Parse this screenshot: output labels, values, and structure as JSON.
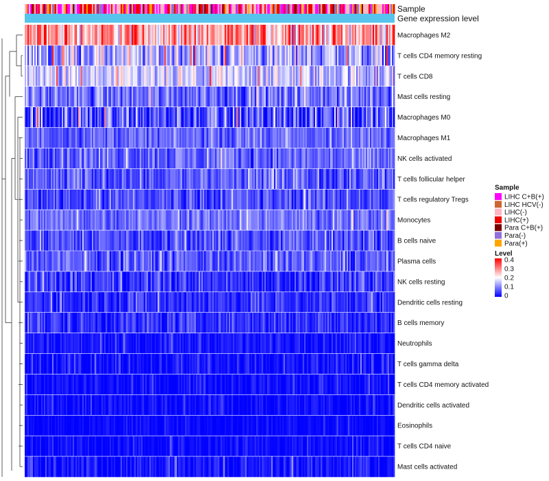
{
  "chart_data": {
    "type": "heatmap",
    "title": "",
    "annotation_rows": [
      "Sample",
      "Gene expression level"
    ],
    "rows": [
      {
        "name": "Macrophages M2",
        "mean": 0.27,
        "spread": 0.12
      },
      {
        "name": "T cells CD4 memory resting",
        "mean": 0.13,
        "spread": 0.1
      },
      {
        "name": "T cells CD8",
        "mean": 0.15,
        "spread": 0.08
      },
      {
        "name": "Mast cells resting",
        "mean": 0.09,
        "spread": 0.07
      },
      {
        "name": "Macrophages M0",
        "mean": 0.06,
        "spread": 0.12
      },
      {
        "name": "Macrophages M1",
        "mean": 0.08,
        "spread": 0.05
      },
      {
        "name": "NK cells activated",
        "mean": 0.08,
        "spread": 0.06
      },
      {
        "name": "T cells follicular helper",
        "mean": 0.07,
        "spread": 0.06
      },
      {
        "name": "T cells regulatory  Tregs",
        "mean": 0.06,
        "spread": 0.06
      },
      {
        "name": "Monocytes",
        "mean": 0.09,
        "spread": 0.05
      },
      {
        "name": "B cells naive",
        "mean": 0.06,
        "spread": 0.06
      },
      {
        "name": "Plasma cells",
        "mean": 0.07,
        "spread": 0.06
      },
      {
        "name": "NK cells resting",
        "mean": 0.04,
        "spread": 0.06
      },
      {
        "name": "Dendritic cells resting",
        "mean": 0.04,
        "spread": 0.05
      },
      {
        "name": "B cells memory",
        "mean": 0.04,
        "spread": 0.05
      },
      {
        "name": "Neutrophils",
        "mean": 0.02,
        "spread": 0.03
      },
      {
        "name": "T cells gamma delta",
        "mean": 0.01,
        "spread": 0.04
      },
      {
        "name": "T cells CD4 memory activated",
        "mean": 0.01,
        "spread": 0.03
      },
      {
        "name": "Dendritic cells activated",
        "mean": 0.01,
        "spread": 0.03
      },
      {
        "name": "Eosinophils",
        "mean": 0.005,
        "spread": 0.02
      },
      {
        "name": "T cells CD4 naive",
        "mean": 0.01,
        "spread": 0.03
      },
      {
        "name": "Mast cells activated",
        "mean": 0.01,
        "spread": 0.04
      }
    ],
    "n_samples": 270,
    "sample_legend": {
      "title": "Sample",
      "items": [
        {
          "label": "LIHC C+B(+)",
          "color": "#ff00ff"
        },
        {
          "label": "LIHC HCV(-)",
          "color": "#cc6633"
        },
        {
          "label": "LIHC(-)",
          "color": "#ffb6c1"
        },
        {
          "label": "LIHC(+)",
          "color": "#ee0000"
        },
        {
          "label": "Para C+B(+)",
          "color": "#7a0000"
        },
        {
          "label": "Para(-)",
          "color": "#9370db"
        },
        {
          "label": "Para(+)",
          "color": "#ffa500"
        }
      ]
    },
    "level_legend": {
      "title": "Level",
      "ticks": [
        "0.4",
        "0.3",
        "0.2",
        "0.1",
        "0"
      ],
      "range": [
        0,
        0.4
      ],
      "colors": {
        "low": "#0000ff",
        "mid": "#ffffff",
        "high": "#ff0000"
      }
    },
    "expression_bar_color": "#56c4ec"
  }
}
